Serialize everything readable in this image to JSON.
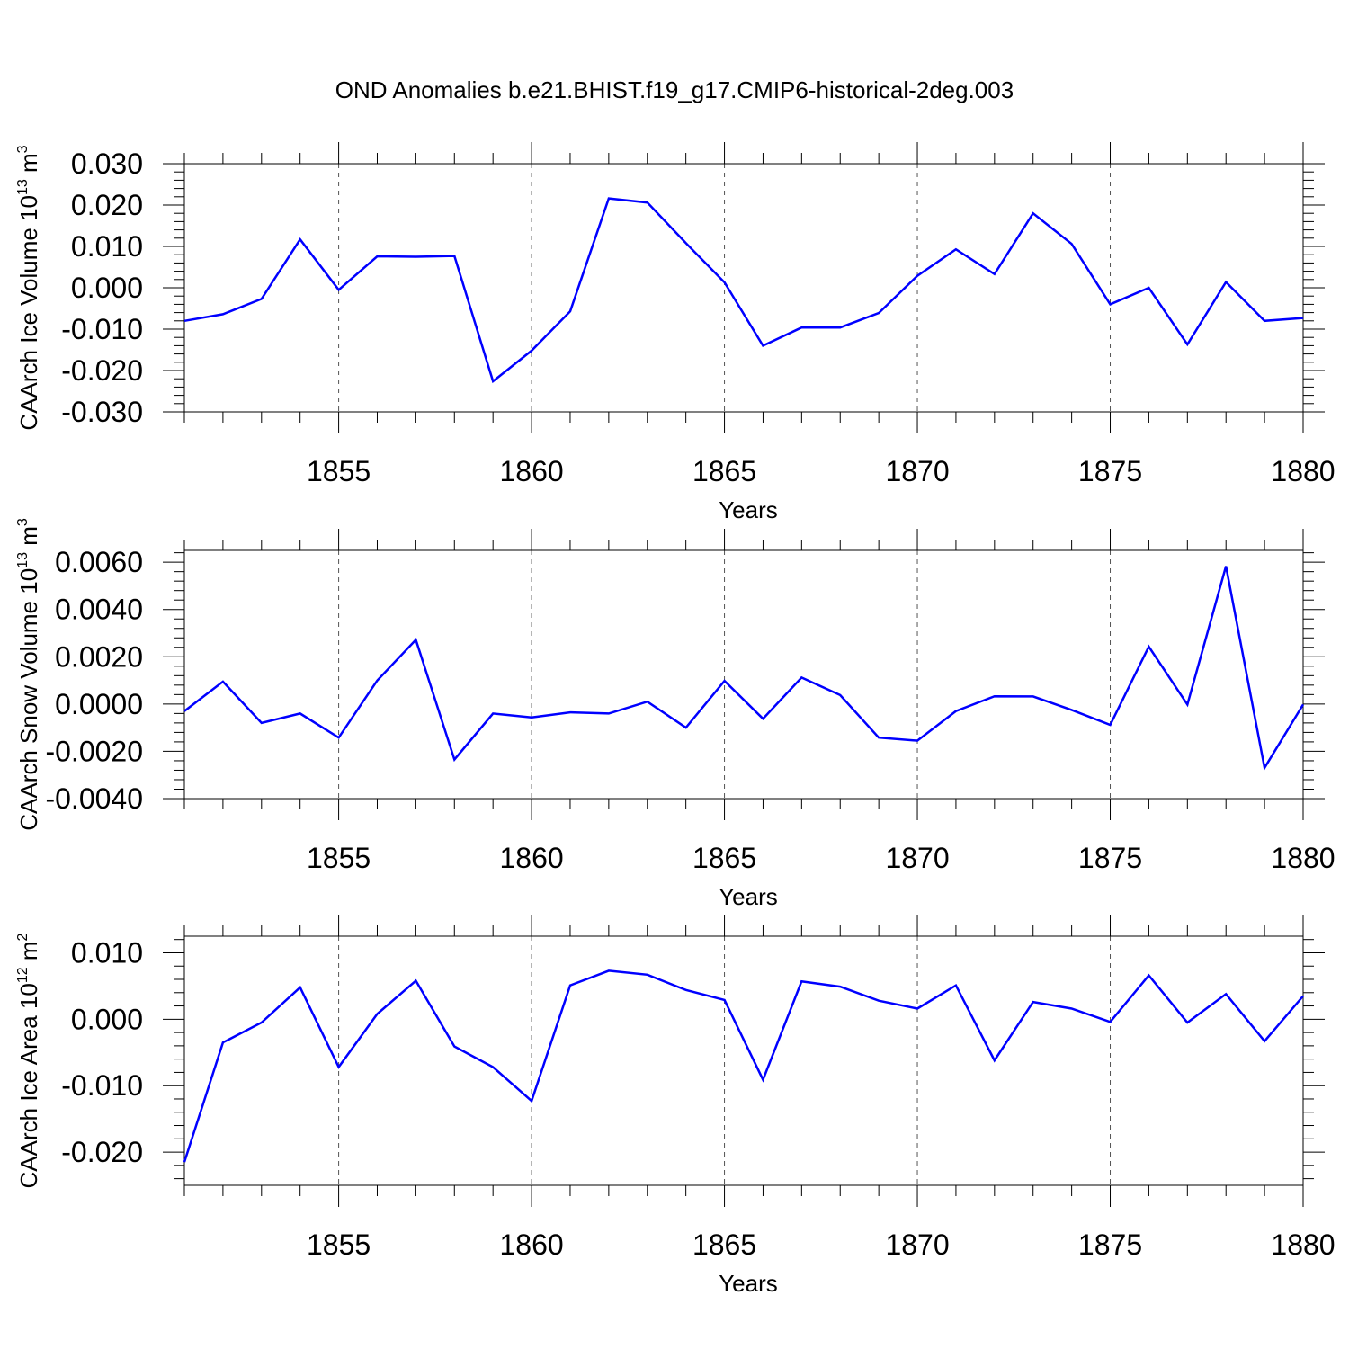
{
  "title": "OND Anomalies b.e21.BHIST.f19_g17.CMIP6-historical-2deg.003",
  "colors": {
    "line": "#0000ff",
    "axis": "#000000",
    "grid": "#555555"
  },
  "chart_data": [
    {
      "type": "line",
      "ylabel": "CAArch Ice Volume 10",
      "ylabel_exp": "13",
      "ylabel_unit": " m",
      "ylabel_unit_exp": "3",
      "xlabel": "Years",
      "xlim": [
        1851,
        1880
      ],
      "ylim": [
        -0.03,
        0.03
      ],
      "x_ticks": [
        1855,
        1860,
        1865,
        1870,
        1875,
        1880
      ],
      "x_tick_labels": [
        "1855",
        "1860",
        "1865",
        "1870",
        "1875",
        "1880"
      ],
      "y_ticks": [
        -0.03,
        -0.02,
        -0.01,
        0.0,
        0.01,
        0.02,
        0.03
      ],
      "y_tick_labels": [
        "-0.030",
        "-0.020",
        "-0.010",
        "0.000",
        "0.010",
        "0.020",
        "0.030"
      ],
      "grid": "vertical dashed at major x ticks",
      "x": [
        1851,
        1852,
        1853,
        1854,
        1855,
        1856,
        1857,
        1858,
        1859,
        1860,
        1861,
        1862,
        1863,
        1864,
        1865,
        1866,
        1867,
        1868,
        1869,
        1870,
        1871,
        1872,
        1873,
        1874,
        1875,
        1876,
        1877,
        1878,
        1879,
        1880
      ],
      "values": [
        -0.008,
        -0.0064,
        -0.0027,
        0.0117,
        -0.0005,
        0.0076,
        0.0075,
        0.0077,
        -0.0226,
        -0.0152,
        -0.0057,
        0.0216,
        0.0206,
        0.0108,
        0.0013,
        -0.014,
        -0.0096,
        -0.0096,
        -0.0061,
        0.0029,
        0.0093,
        0.0033,
        0.018,
        0.0106,
        -0.004,
        0.0,
        -0.0137,
        0.0014,
        -0.008,
        -0.0073
      ]
    },
    {
      "type": "line",
      "ylabel": "CAArch Snow Volume 10",
      "ylabel_exp": "13",
      "ylabel_unit": " m",
      "ylabel_unit_exp": "3",
      "xlabel": "Years",
      "xlim": [
        1851,
        1880
      ],
      "ylim": [
        -0.004,
        0.0065
      ],
      "x_ticks": [
        1855,
        1860,
        1865,
        1870,
        1875,
        1880
      ],
      "x_tick_labels": [
        "1855",
        "1860",
        "1865",
        "1870",
        "1875",
        "1880"
      ],
      "y_ticks": [
        -0.004,
        -0.002,
        0.0,
        0.002,
        0.004,
        0.006
      ],
      "y_tick_labels": [
        "-0.0040",
        "-0.0020",
        "0.0000",
        "0.0020",
        "0.0040",
        "0.0060"
      ],
      "grid": "vertical dashed at major x ticks",
      "x": [
        1851,
        1852,
        1853,
        1854,
        1855,
        1856,
        1857,
        1858,
        1859,
        1860,
        1861,
        1862,
        1863,
        1864,
        1865,
        1866,
        1867,
        1868,
        1869,
        1870,
        1871,
        1872,
        1873,
        1874,
        1875,
        1876,
        1877,
        1878,
        1879,
        1880
      ],
      "values": [
        -0.0003,
        0.00095,
        -0.0008,
        -0.0004,
        -0.00142,
        0.001,
        0.00272,
        -0.00235,
        -0.0004,
        -0.00057,
        -0.00035,
        -0.0004,
        0.0001,
        -0.001,
        0.00098,
        -0.00062,
        0.00112,
        0.00038,
        -0.00142,
        -0.00155,
        -0.0003,
        0.00033,
        0.00032,
        -0.00025,
        -0.00088,
        0.00243,
        -2e-05,
        0.00583,
        -0.0027,
        -2e-05
      ]
    },
    {
      "type": "line",
      "ylabel": "CAArch Ice Area 10",
      "ylabel_exp": "12",
      "ylabel_unit": " m",
      "ylabel_unit_exp": "2",
      "xlabel": "Years",
      "xlim": [
        1851,
        1880
      ],
      "ylim": [
        -0.025,
        0.0125
      ],
      "x_ticks": [
        1855,
        1860,
        1865,
        1870,
        1875,
        1880
      ],
      "x_tick_labels": [
        "1855",
        "1860",
        "1865",
        "1870",
        "1875",
        "1880"
      ],
      "y_ticks": [
        -0.02,
        -0.01,
        0.0,
        0.01
      ],
      "y_tick_labels": [
        "-0.020",
        "-0.010",
        "0.000",
        "0.010"
      ],
      "grid": "vertical dashed at major x ticks",
      "x": [
        1851,
        1852,
        1853,
        1854,
        1855,
        1856,
        1857,
        1858,
        1859,
        1860,
        1861,
        1862,
        1863,
        1864,
        1865,
        1866,
        1867,
        1868,
        1869,
        1870,
        1871,
        1872,
        1873,
        1874,
        1875,
        1876,
        1877,
        1878,
        1879,
        1880
      ],
      "values": [
        -0.0215,
        -0.0035,
        -0.0005,
        0.0048,
        -0.0072,
        0.0008,
        0.0058,
        -0.0041,
        -0.0072,
        -0.0123,
        0.0051,
        0.0073,
        0.0067,
        0.0044,
        0.0029,
        -0.0091,
        0.0057,
        0.0049,
        0.0028,
        0.0016,
        0.0051,
        -0.0062,
        0.0026,
        0.0016,
        -0.0004,
        0.0066,
        -0.0005,
        0.0038,
        -0.0033,
        0.0035
      ]
    }
  ]
}
